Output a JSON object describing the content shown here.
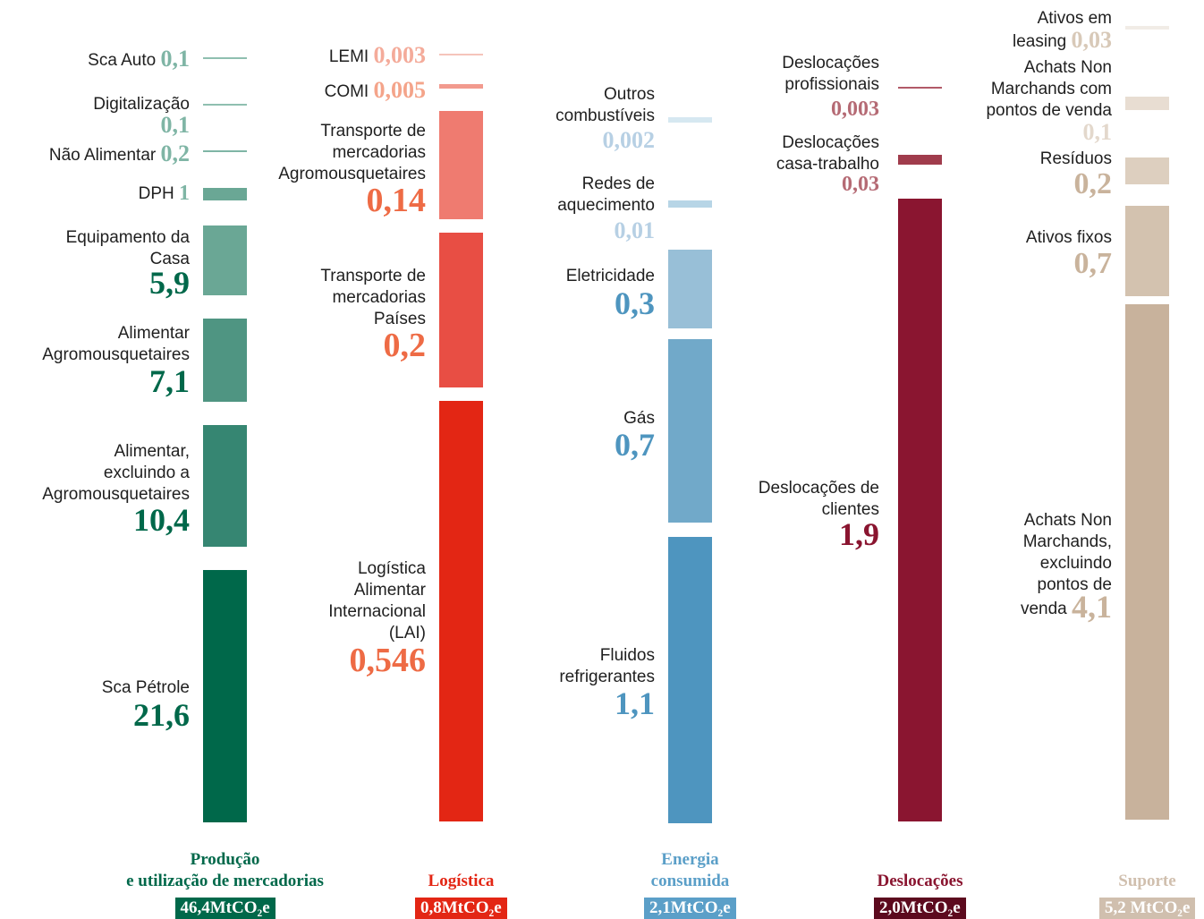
{
  "groups": [
    {
      "title": [
        "Produção",
        "e utilização de mercadorias"
      ],
      "total": "46,4MtCO₂e",
      "items": [
        {
          "label": [
            "Sca Auto"
          ],
          "value": "0,1"
        },
        {
          "label": [
            "Digitalização"
          ],
          "value": "0,1"
        },
        {
          "label": [
            "Não Alimentar"
          ],
          "value": "0,2"
        },
        {
          "label": [
            "DPH"
          ],
          "value": "1"
        },
        {
          "label": [
            "Equipamento da",
            "Casa"
          ],
          "value": "5,9"
        },
        {
          "label": [
            "Alimentar",
            "Agromousquetaires"
          ],
          "value": "7,1"
        },
        {
          "label": [
            "Alimentar,",
            "excluindo a",
            "Agromousquetaires"
          ],
          "value": "10,4"
        },
        {
          "label": [
            "Sca Pétrole"
          ],
          "value": "21,6"
        }
      ]
    },
    {
      "title": [
        "Logística"
      ],
      "total": "0,8MtCO₂e",
      "items": [
        {
          "label": [
            "LEMI"
          ],
          "value": "0,003"
        },
        {
          "label": [
            "COMI"
          ],
          "value": "0,005"
        },
        {
          "label": [
            "Transporte de",
            "mercadorias",
            "Agromousquetaires"
          ],
          "value": "0,14"
        },
        {
          "label": [
            "Transporte de",
            "mercadorias",
            "Países"
          ],
          "value": "0,2"
        },
        {
          "label": [
            "Logística",
            "Alimentar",
            "Internacional",
            "(LAI)"
          ],
          "value": "0,546"
        }
      ]
    },
    {
      "title": [
        "Energia",
        "consumida"
      ],
      "total": "2,1MtCO₂e",
      "items": [
        {
          "label": [
            "Outros",
            "combustíveis"
          ],
          "value": "0,002"
        },
        {
          "label": [
            "Redes de",
            "aquecimento"
          ],
          "value": "0,01"
        },
        {
          "label": [
            "Eletricidade"
          ],
          "value": "0,3"
        },
        {
          "label": [
            "Gás"
          ],
          "value": "0,7"
        },
        {
          "label": [
            "Fluidos",
            "refrigerantes"
          ],
          "value": "1,1"
        }
      ]
    },
    {
      "title": [
        "Deslocações"
      ],
      "total": "2,0MtCO₂e",
      "items": [
        {
          "label": [
            "Deslocações",
            "profissionais"
          ],
          "value": "0,003"
        },
        {
          "label": [
            "Deslocações",
            "casa-trabalho"
          ],
          "value": "0,03"
        },
        {
          "label": [
            "Deslocações de",
            "clientes"
          ],
          "value": "1,9"
        }
      ]
    },
    {
      "title": [
        "Suporte"
      ],
      "total": "5,2 MtCO₂e",
      "items": [
        {
          "label": [
            "Ativos em",
            "leasing"
          ],
          "value": "0,03"
        },
        {
          "label": [
            "Achats Non",
            "Marchands com",
            "pontos de venda"
          ],
          "value": "0,1"
        },
        {
          "label": [
            "Resíduos"
          ],
          "value": "0,2"
        },
        {
          "label": [
            "Ativos fixos"
          ],
          "value": "0,7"
        },
        {
          "label": [
            "Achats Non",
            "Marchands,",
            "excluindo",
            "pontos de",
            "venda"
          ],
          "value": "4,1"
        }
      ]
    }
  ]
}
